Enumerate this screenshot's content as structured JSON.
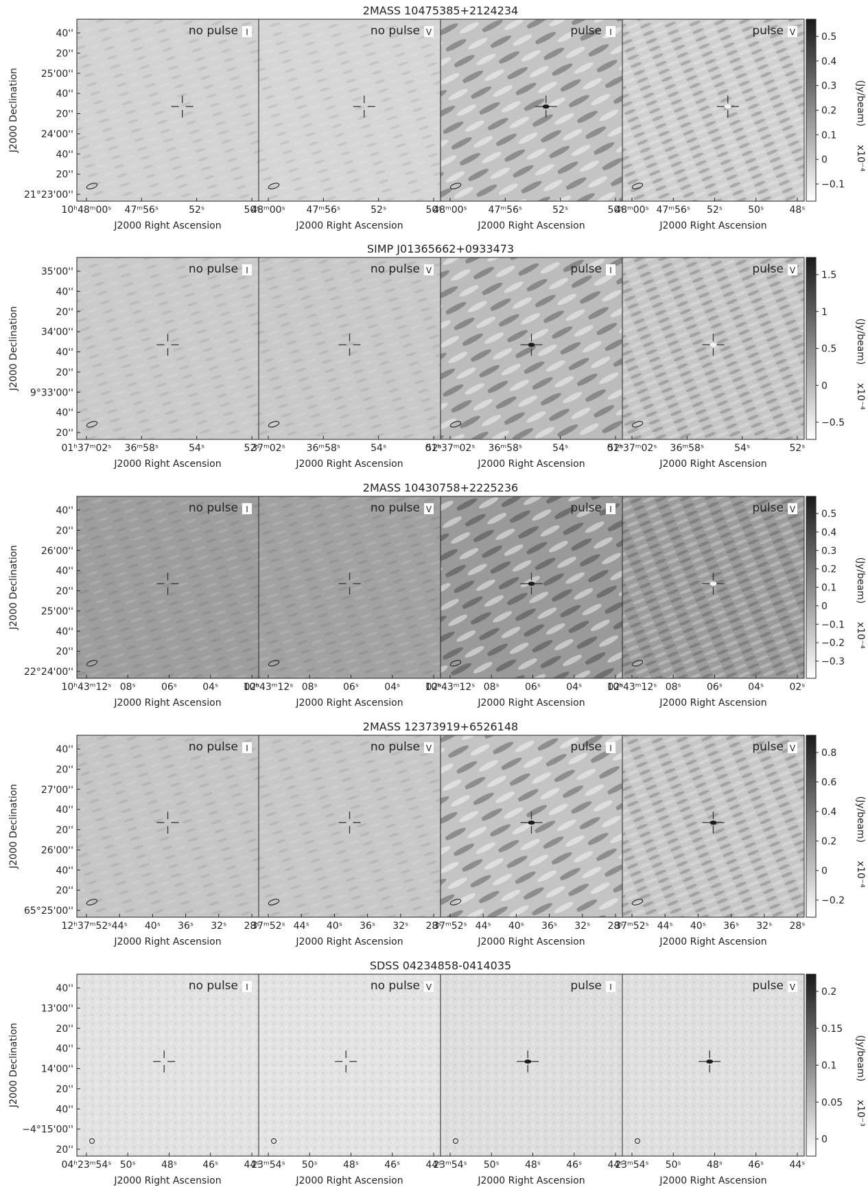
{
  "figure": {
    "rows": [
      {
        "title": "2MASS 10475385+2124234",
        "dec_ticks": [
          "40''",
          "20''",
          "25'00''",
          "40''",
          "20''",
          "24'00''",
          "40''",
          "20''",
          "21°23'00''"
        ],
        "ra_ticks": [
          [
            "10ʰ48ᵐ00ˢ",
            "47ᵐ56ˢ",
            "52ˢ",
            "50ˢ"
          ],
          [
            "48ᵐ00ˢ",
            "47ᵐ56ˢ",
            "52ˢ",
            "50ˢ"
          ],
          [
            "48ᵐ00ˢ",
            "47ᵐ56ˢ",
            "52ˢ",
            "50ˢ"
          ],
          [
            "48ᵐ00ˢ",
            "47ᵐ56ˢ",
            "52ˢ",
            "50ˢ",
            "48ˢ"
          ]
        ],
        "colorbar_ticks": [
          "0.5",
          "0.4",
          "0.3",
          "0.2",
          "0.1",
          "0",
          "−0.1"
        ],
        "colorbar_exp": "x10⁻⁴",
        "bg": "#cfcfcf",
        "panel_bg": [
          "#d3d3d3",
          "#d6d6d6",
          "#c4c4c4",
          "#d0d0d0"
        ]
      },
      {
        "title": "SIMP J01365662+0933473",
        "dec_ticks": [
          "35'00''",
          "40''",
          "20''",
          "34'00''",
          "40''",
          "20''",
          "9°33'00''",
          "40''",
          "20''"
        ],
        "ra_ticks": [
          [
            "01ʰ37ᵐ02ˢ",
            "36ᵐ58ˢ",
            "54ˢ",
            "52ˢ"
          ],
          [
            "37ᵐ02ˢ",
            "36ᵐ58ˢ",
            "54ˢ",
            "52ˢ"
          ],
          [
            "01ʰ37ᵐ02ˢ",
            "36ᵐ58ˢ",
            "54ˢ",
            "52ˢ"
          ],
          [
            "01ʰ37ᵐ02ˢ",
            "36ᵐ58ˢ",
            "54ˢ",
            "52ˢ"
          ]
        ],
        "colorbar_ticks": [
          "1.5",
          "1",
          "0.5",
          "0",
          "−0.5"
        ],
        "colorbar_exp": "x10⁻⁴",
        "panel_bg": [
          "#cbcbcb",
          "#c9c9c9",
          "#bcbcbc",
          "#c6c6c6"
        ]
      },
      {
        "title": "2MASS 10430758+2225236",
        "dec_ticks": [
          "40''",
          "20''",
          "26'00''",
          "40''",
          "20''",
          "25'00''",
          "40''",
          "20''",
          "22°24'00''"
        ],
        "ra_ticks": [
          [
            "10ʰ43ᵐ12ˢ",
            "08ˢ",
            "06ˢ",
            "04ˢ",
            "02ˢ"
          ],
          [
            "10ʰ43ᵐ12ˢ",
            "08ˢ",
            "06ˢ",
            "04ˢ",
            "02ˢ"
          ],
          [
            "10ʰ43ᵐ12ˢ",
            "08ˢ",
            "06ˢ",
            "04ˢ",
            "02ˢ"
          ],
          [
            "10ʰ43ᵐ12ˢ",
            "08ˢ",
            "06ˢ",
            "04ˢ",
            "02ˢ"
          ]
        ],
        "colorbar_ticks": [
          "0.5",
          "0.4",
          "0.3",
          "0.2",
          "0.1",
          "0",
          "−0.1",
          "−0.2",
          "−0.3"
        ],
        "colorbar_exp": "x10⁻⁴",
        "panel_bg": [
          "#9e9e9e",
          "#a2a2a2",
          "#9a9a9a",
          "#9c9c9c"
        ]
      },
      {
        "title": "2MASS 12373919+6526148",
        "dec_ticks": [
          "40''",
          "20''",
          "27'00''",
          "40''",
          "20''",
          "26'00''",
          "40''",
          "20''",
          "65°25'00''"
        ],
        "ra_ticks": [
          [
            "12ʰ37ᵐ52ˢ",
            "44ˢ",
            "40ˢ",
            "36ˢ",
            "32ˢ",
            "28ˢ"
          ],
          [
            "37ᵐ52ˢ",
            "44ˢ",
            "40ˢ",
            "36ˢ",
            "32ˢ",
            "28ˢ"
          ],
          [
            "37ᵐ52ˢ",
            "44ˢ",
            "40ˢ",
            "36ˢ",
            "32ˢ",
            "28ˢ"
          ],
          [
            "37ᵐ52ˢ",
            "44ˢ",
            "40ˢ",
            "36ˢ",
            "32ˢ",
            "28ˢ"
          ]
        ],
        "colorbar_ticks": [
          "0.8",
          "0.6",
          "0.4",
          "0.2",
          "0",
          "−0.2"
        ],
        "colorbar_exp": "x10⁻⁴",
        "panel_bg": [
          "#c6c6c6",
          "#c8c8c8",
          "#c4c4c4",
          "#c7c7c7"
        ]
      },
      {
        "title": "SDSS 04234858-0414035",
        "dec_ticks": [
          "40''",
          "13'00''",
          "20''",
          "40''",
          "14'00''",
          "20''",
          "40''",
          "−4°15'00''",
          "20''"
        ],
        "ra_ticks": [
          [
            "04ʰ23ᵐ54ˢ",
            "50ˢ",
            "48ˢ",
            "46ˢ",
            "44ˢ"
          ],
          [
            "23ᵐ54ˢ",
            "50ˢ",
            "48ˢ",
            "46ˢ",
            "44ˢ"
          ],
          [
            "23ᵐ54ˢ",
            "50ˢ",
            "48ˢ",
            "46ˢ",
            "44ˢ"
          ],
          [
            "23ᵐ54ˢ",
            "50ˢ",
            "48ˢ",
            "46ˢ",
            "44ˢ"
          ]
        ],
        "colorbar_ticks": [
          "0.2",
          "0.15",
          "0.1",
          "0.05",
          "0"
        ],
        "colorbar_exp": "x10⁻³",
        "panel_bg": [
          "#e2e2e2",
          "#e3e3e3",
          "#dedede",
          "#dfdfdf"
        ]
      }
    ],
    "panel_labels": [
      {
        "text": "no pulse",
        "stokes": "I"
      },
      {
        "text": "no pulse",
        "stokes": "V"
      },
      {
        "text": "pulse",
        "stokes": "I"
      },
      {
        "text": "pulse",
        "stokes": "V"
      }
    ],
    "dec_axis_label": "J2000 Declination",
    "ra_axis_label": "J2000 Right Ascension",
    "colorbar_unit": "(Jy/beam)"
  }
}
